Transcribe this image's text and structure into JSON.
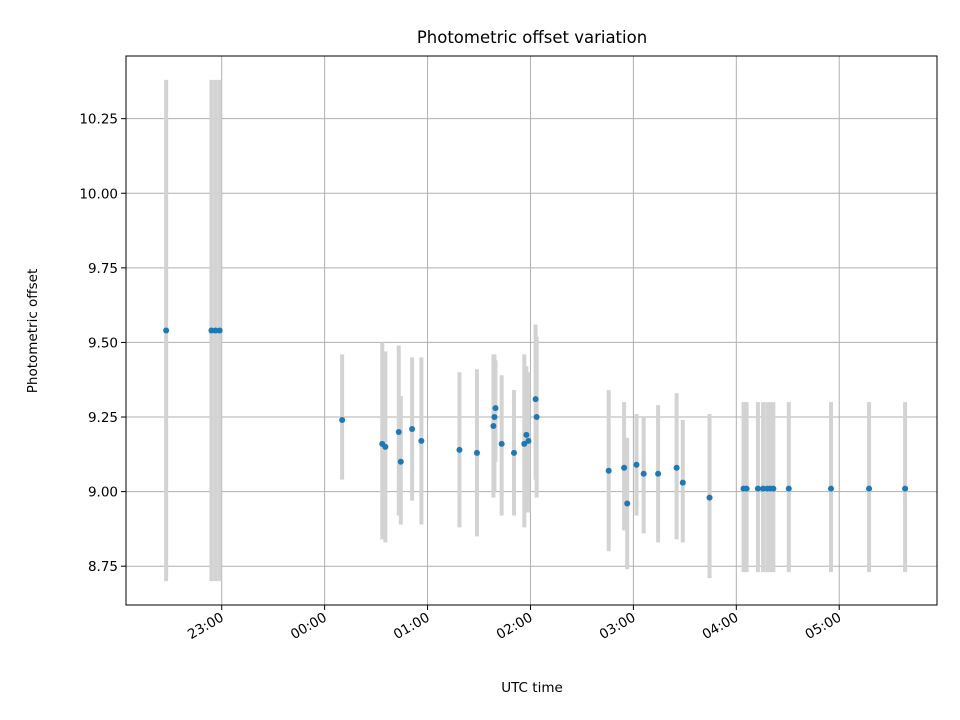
{
  "chart_data": {
    "type": "scatter",
    "title": "Photometric offset variation",
    "xlabel": "UTC time",
    "ylabel": "Photometric offset",
    "x_unit": "hours",
    "xlim": [
      -1.93,
      5.95
    ],
    "ylim": [
      8.62,
      10.46
    ],
    "grid": true,
    "x_ticks": [
      {
        "value": -1.0,
        "label": "23:00"
      },
      {
        "value": 0.0,
        "label": "00:00"
      },
      {
        "value": 1.0,
        "label": "01:00"
      },
      {
        "value": 2.0,
        "label": "02:00"
      },
      {
        "value": 3.0,
        "label": "03:00"
      },
      {
        "value": 4.0,
        "label": "04:00"
      },
      {
        "value": 5.0,
        "label": "05:00"
      }
    ],
    "y_ticks": [
      {
        "value": 8.75,
        "label": "8.75"
      },
      {
        "value": 9.0,
        "label": "9.00"
      },
      {
        "value": 9.25,
        "label": "9.25"
      },
      {
        "value": 9.5,
        "label": "9.50"
      },
      {
        "value": 9.75,
        "label": "9.75"
      },
      {
        "value": 10.0,
        "label": "10.00"
      },
      {
        "value": 10.25,
        "label": "10.25"
      }
    ],
    "colors": {
      "point": "#1f77b4",
      "errorbar": "#d3d3d3",
      "grid": "#b0b0b0"
    },
    "points": [
      {
        "x": -1.54,
        "y": 9.54,
        "lo": 8.7,
        "hi": 10.38
      },
      {
        "x": -1.1,
        "y": 9.54,
        "lo": 8.7,
        "hi": 10.38
      },
      {
        "x": -1.06,
        "y": 9.54,
        "lo": 8.7,
        "hi": 10.38
      },
      {
        "x": -1.02,
        "y": 9.54,
        "lo": 8.7,
        "hi": 10.38
      },
      {
        "x": 0.17,
        "y": 9.24,
        "lo": 9.04,
        "hi": 9.46
      },
      {
        "x": 0.56,
        "y": 9.16,
        "lo": 8.84,
        "hi": 9.5
      },
      {
        "x": 0.59,
        "y": 9.15,
        "lo": 8.83,
        "hi": 9.47
      },
      {
        "x": 0.72,
        "y": 9.2,
        "lo": 8.92,
        "hi": 9.49
      },
      {
        "x": 0.74,
        "y": 9.1,
        "lo": 8.89,
        "hi": 9.32
      },
      {
        "x": 0.85,
        "y": 9.21,
        "lo": 8.97,
        "hi": 9.45
      },
      {
        "x": 0.94,
        "y": 9.17,
        "lo": 8.89,
        "hi": 9.45
      },
      {
        "x": 1.31,
        "y": 9.14,
        "lo": 8.88,
        "hi": 9.4
      },
      {
        "x": 1.48,
        "y": 9.13,
        "lo": 8.85,
        "hi": 9.41
      },
      {
        "x": 1.64,
        "y": 9.22,
        "lo": 8.98,
        "hi": 9.46
      },
      {
        "x": 1.65,
        "y": 9.25,
        "lo": 9.0,
        "hi": 9.46
      },
      {
        "x": 1.66,
        "y": 9.28,
        "lo": 9.1,
        "hi": 9.44
      },
      {
        "x": 1.72,
        "y": 9.16,
        "lo": 8.92,
        "hi": 9.39
      },
      {
        "x": 1.84,
        "y": 9.13,
        "lo": 8.92,
        "hi": 9.34
      },
      {
        "x": 1.94,
        "y": 9.16,
        "lo": 8.88,
        "hi": 9.46
      },
      {
        "x": 1.96,
        "y": 9.19,
        "lo": 8.93,
        "hi": 9.42
      },
      {
        "x": 1.98,
        "y": 9.17,
        "lo": 8.93,
        "hi": 9.4
      },
      {
        "x": 2.05,
        "y": 9.31,
        "lo": 9.04,
        "hi": 9.56
      },
      {
        "x": 2.06,
        "y": 9.25,
        "lo": 8.98,
        "hi": 9.52
      },
      {
        "x": 2.76,
        "y": 9.07,
        "lo": 8.8,
        "hi": 9.34
      },
      {
        "x": 2.91,
        "y": 9.08,
        "lo": 8.87,
        "hi": 9.3
      },
      {
        "x": 2.94,
        "y": 8.96,
        "lo": 8.74,
        "hi": 9.18
      },
      {
        "x": 3.03,
        "y": 9.09,
        "lo": 8.92,
        "hi": 9.26
      },
      {
        "x": 3.1,
        "y": 9.06,
        "lo": 8.86,
        "hi": 9.25
      },
      {
        "x": 3.24,
        "y": 9.06,
        "lo": 8.83,
        "hi": 9.29
      },
      {
        "x": 3.42,
        "y": 9.08,
        "lo": 8.84,
        "hi": 9.33
      },
      {
        "x": 3.48,
        "y": 9.03,
        "lo": 8.83,
        "hi": 9.24
      },
      {
        "x": 3.74,
        "y": 8.98,
        "lo": 8.71,
        "hi": 9.26
      },
      {
        "x": 4.07,
        "y": 9.01,
        "lo": 8.73,
        "hi": 9.3
      },
      {
        "x": 4.1,
        "y": 9.01,
        "lo": 8.73,
        "hi": 9.3
      },
      {
        "x": 4.21,
        "y": 9.01,
        "lo": 8.73,
        "hi": 9.3
      },
      {
        "x": 4.26,
        "y": 9.01,
        "lo": 8.73,
        "hi": 9.3
      },
      {
        "x": 4.3,
        "y": 9.01,
        "lo": 8.73,
        "hi": 9.3
      },
      {
        "x": 4.33,
        "y": 9.01,
        "lo": 8.73,
        "hi": 9.3
      },
      {
        "x": 4.36,
        "y": 9.01,
        "lo": 8.73,
        "hi": 9.3
      },
      {
        "x": 4.51,
        "y": 9.01,
        "lo": 8.73,
        "hi": 9.3
      },
      {
        "x": 4.92,
        "y": 9.01,
        "lo": 8.73,
        "hi": 9.3
      },
      {
        "x": 5.29,
        "y": 9.01,
        "lo": 8.73,
        "hi": 9.3
      },
      {
        "x": 5.64,
        "y": 9.01,
        "lo": 8.73,
        "hi": 9.3
      }
    ]
  }
}
